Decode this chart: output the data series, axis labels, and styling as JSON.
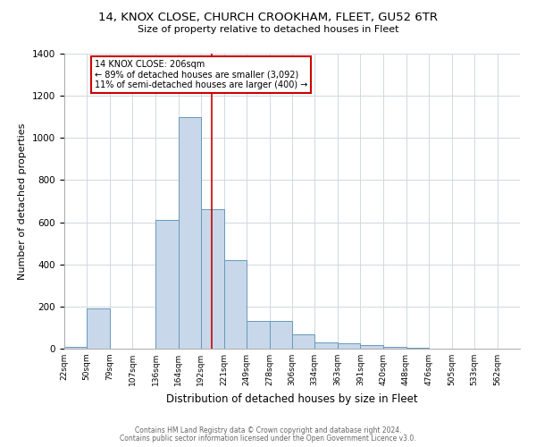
{
  "title": "14, KNOX CLOSE, CHURCH CROOKHAM, FLEET, GU52 6TR",
  "subtitle": "Size of property relative to detached houses in Fleet",
  "xlabel": "Distribution of detached houses by size in Fleet",
  "ylabel": "Number of detached properties",
  "footnote1": "Contains HM Land Registry data © Crown copyright and database right 2024.",
  "footnote2": "Contains public sector information licensed under the Open Government Licence v3.0.",
  "annotation_line1": "14 KNOX CLOSE: 206sqm",
  "annotation_line2": "← 89% of detached houses are smaller (3,092)",
  "annotation_line3": "11% of semi-detached houses are larger (400) →",
  "bar_edges": [
    22,
    50,
    79,
    107,
    136,
    164,
    192,
    221,
    249,
    278,
    306,
    334,
    363,
    391,
    420,
    448,
    476,
    505,
    533,
    562,
    590
  ],
  "bar_heights": [
    10,
    190,
    0,
    0,
    610,
    1100,
    660,
    420,
    130,
    130,
    70,
    30,
    25,
    15,
    8,
    5,
    2,
    2,
    0,
    0
  ],
  "bar_color": "#c8d8ea",
  "bar_edge_color": "#6699bb",
  "red_line_x": 206,
  "red_line_color": "#cc0000",
  "annotation_box_edge": "#cc0000",
  "background_color": "#ffffff",
  "ylim": [
    0,
    1400
  ],
  "yticks": [
    0,
    200,
    400,
    600,
    800,
    1000,
    1200,
    1400
  ]
}
